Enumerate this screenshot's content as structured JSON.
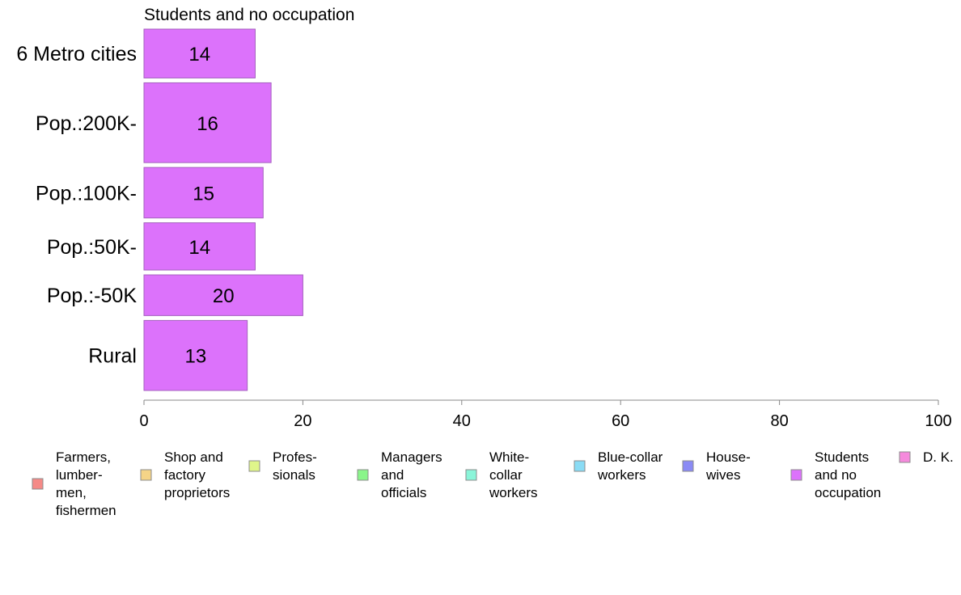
{
  "chart_data": {
    "type": "bar",
    "orientation": "horizontal",
    "title": "Students and no occupation",
    "categories": [
      "6 Metro cities",
      "Pop.:200K-",
      "Pop.:100K-",
      "Pop.:50K-",
      "Pop.:-50K",
      "Rural"
    ],
    "category_weights": [
      0.6,
      0.98,
      0.62,
      0.58,
      0.5,
      0.86
    ],
    "values": [
      14,
      16,
      15,
      14,
      20,
      13
    ],
    "value_labels": [
      "14",
      "16",
      "15",
      "14",
      "20",
      "13"
    ],
    "xlim": [
      0,
      100
    ],
    "x_ticks": [
      "0",
      "20",
      "40",
      "60",
      "80",
      "100"
    ],
    "x_tick_values": [
      0,
      20,
      40,
      60,
      80,
      100
    ],
    "grid": false,
    "bar_color": "#dc72fb",
    "bar_stroke": "#a561bf",
    "axis_color": "#888888",
    "legend_placement": "bottom",
    "legend": [
      {
        "lines": [
          "Farmers,",
          "lumber-",
          "men,",
          "fishermen"
        ],
        "color": "#f58a87"
      },
      {
        "lines": [
          "Shop and",
          "factory",
          "proprietors"
        ],
        "color": "#f5d487"
      },
      {
        "lines": [
          "Profes-",
          "sionals"
        ],
        "color": "#dff58a"
      },
      {
        "lines": [
          "Managers",
          "and",
          "officials"
        ],
        "color": "#8af58a"
      },
      {
        "lines": [
          "White-",
          "collar",
          "workers"
        ],
        "color": "#8af5d9"
      },
      {
        "lines": [
          "Blue-collar",
          "workers"
        ],
        "color": "#8adcf5"
      },
      {
        "lines": [
          "House-",
          "wives"
        ],
        "color": "#8a8af5"
      },
      {
        "lines": [
          "Students",
          "and no",
          "occupation"
        ],
        "color": "#dc72fb"
      },
      {
        "lines": [
          "D. K."
        ],
        "color": "#f58adc"
      }
    ]
  }
}
